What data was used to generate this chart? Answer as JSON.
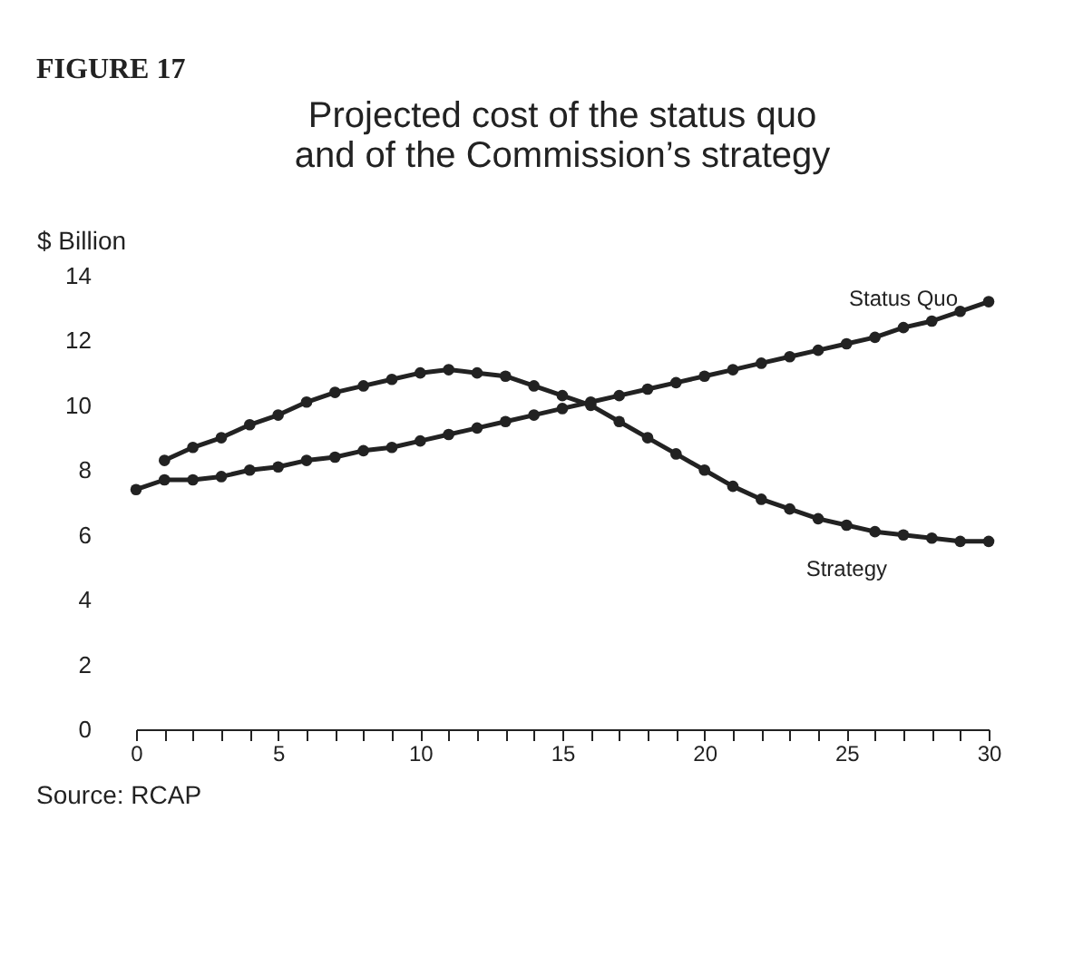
{
  "chart_data": {
    "type": "line",
    "title": "FIGURE 17",
    "subtitle": "Projected cost of the status quo and of the Commission’s strategy",
    "ylabel": "$ Billion",
    "x": [
      0,
      1,
      2,
      3,
      4,
      5,
      6,
      7,
      8,
      9,
      10,
      11,
      12,
      13,
      14,
      15,
      16,
      17,
      18,
      19,
      20,
      21,
      22,
      23,
      24,
      25,
      26,
      27,
      28,
      29,
      30
    ],
    "series": [
      {
        "name": "Status Quo",
        "color": "#222222",
        "values": [
          7.4,
          7.7,
          7.7,
          7.8,
          8.0,
          8.1,
          8.3,
          8.4,
          8.6,
          8.7,
          8.9,
          9.1,
          9.3,
          9.5,
          9.7,
          9.9,
          10.1,
          10.3,
          10.5,
          10.7,
          10.9,
          11.1,
          11.3,
          11.5,
          11.7,
          11.9,
          12.1,
          12.4,
          12.6,
          12.9,
          13.2
        ]
      },
      {
        "name": "Strategy",
        "color": "#222222",
        "values": [
          null,
          8.3,
          8.7,
          9.0,
          9.4,
          9.7,
          10.1,
          10.4,
          10.6,
          10.8,
          11.0,
          11.1,
          11.0,
          10.9,
          10.6,
          10.3,
          10.0,
          9.5,
          9.0,
          8.5,
          8.0,
          7.5,
          7.1,
          6.8,
          6.5,
          6.3,
          6.1,
          6.0,
          5.9,
          5.8,
          5.8
        ]
      }
    ],
    "xlim": [
      0,
      30
    ],
    "xticks": [
      0,
      {
        "value": 1,
        "label": null
      },
      {
        "value": 2,
        "label": null
      },
      {
        "value": 3,
        "label": null
      },
      {
        "value": 4,
        "label": null
      },
      5,
      {
        "value": 6,
        "label": null
      },
      {
        "value": 7,
        "label": null
      },
      {
        "value": 8,
        "label": null
      },
      {
        "value": 9,
        "label": null
      },
      10,
      {
        "value": 11,
        "label": null
      },
      {
        "value": 12,
        "label": null
      },
      {
        "value": 13,
        "label": null
      },
      {
        "value": 14,
        "label": null
      },
      15,
      {
        "value": 16,
        "label": null
      },
      {
        "value": 17,
        "label": null
      },
      {
        "value": 18,
        "label": null
      },
      {
        "value": 19,
        "label": null
      },
      20,
      {
        "value": 21,
        "label": null
      },
      {
        "value": 22,
        "label": null
      },
      {
        "value": 23,
        "label": null
      },
      {
        "value": 24,
        "label": null
      },
      25,
      {
        "value": 26,
        "label": null
      },
      {
        "value": 27,
        "label": null
      },
      {
        "value": 28,
        "label": null
      },
      {
        "value": 29,
        "label": null
      },
      30
    ],
    "ylim": [
      0,
      14
    ],
    "yticks": [
      0,
      2,
      4,
      6,
      8,
      10,
      12,
      14
    ],
    "marker": "circle",
    "line_style": "solid",
    "grid": false,
    "legend": false,
    "annotations": [
      "Source: RCAP"
    ]
  }
}
